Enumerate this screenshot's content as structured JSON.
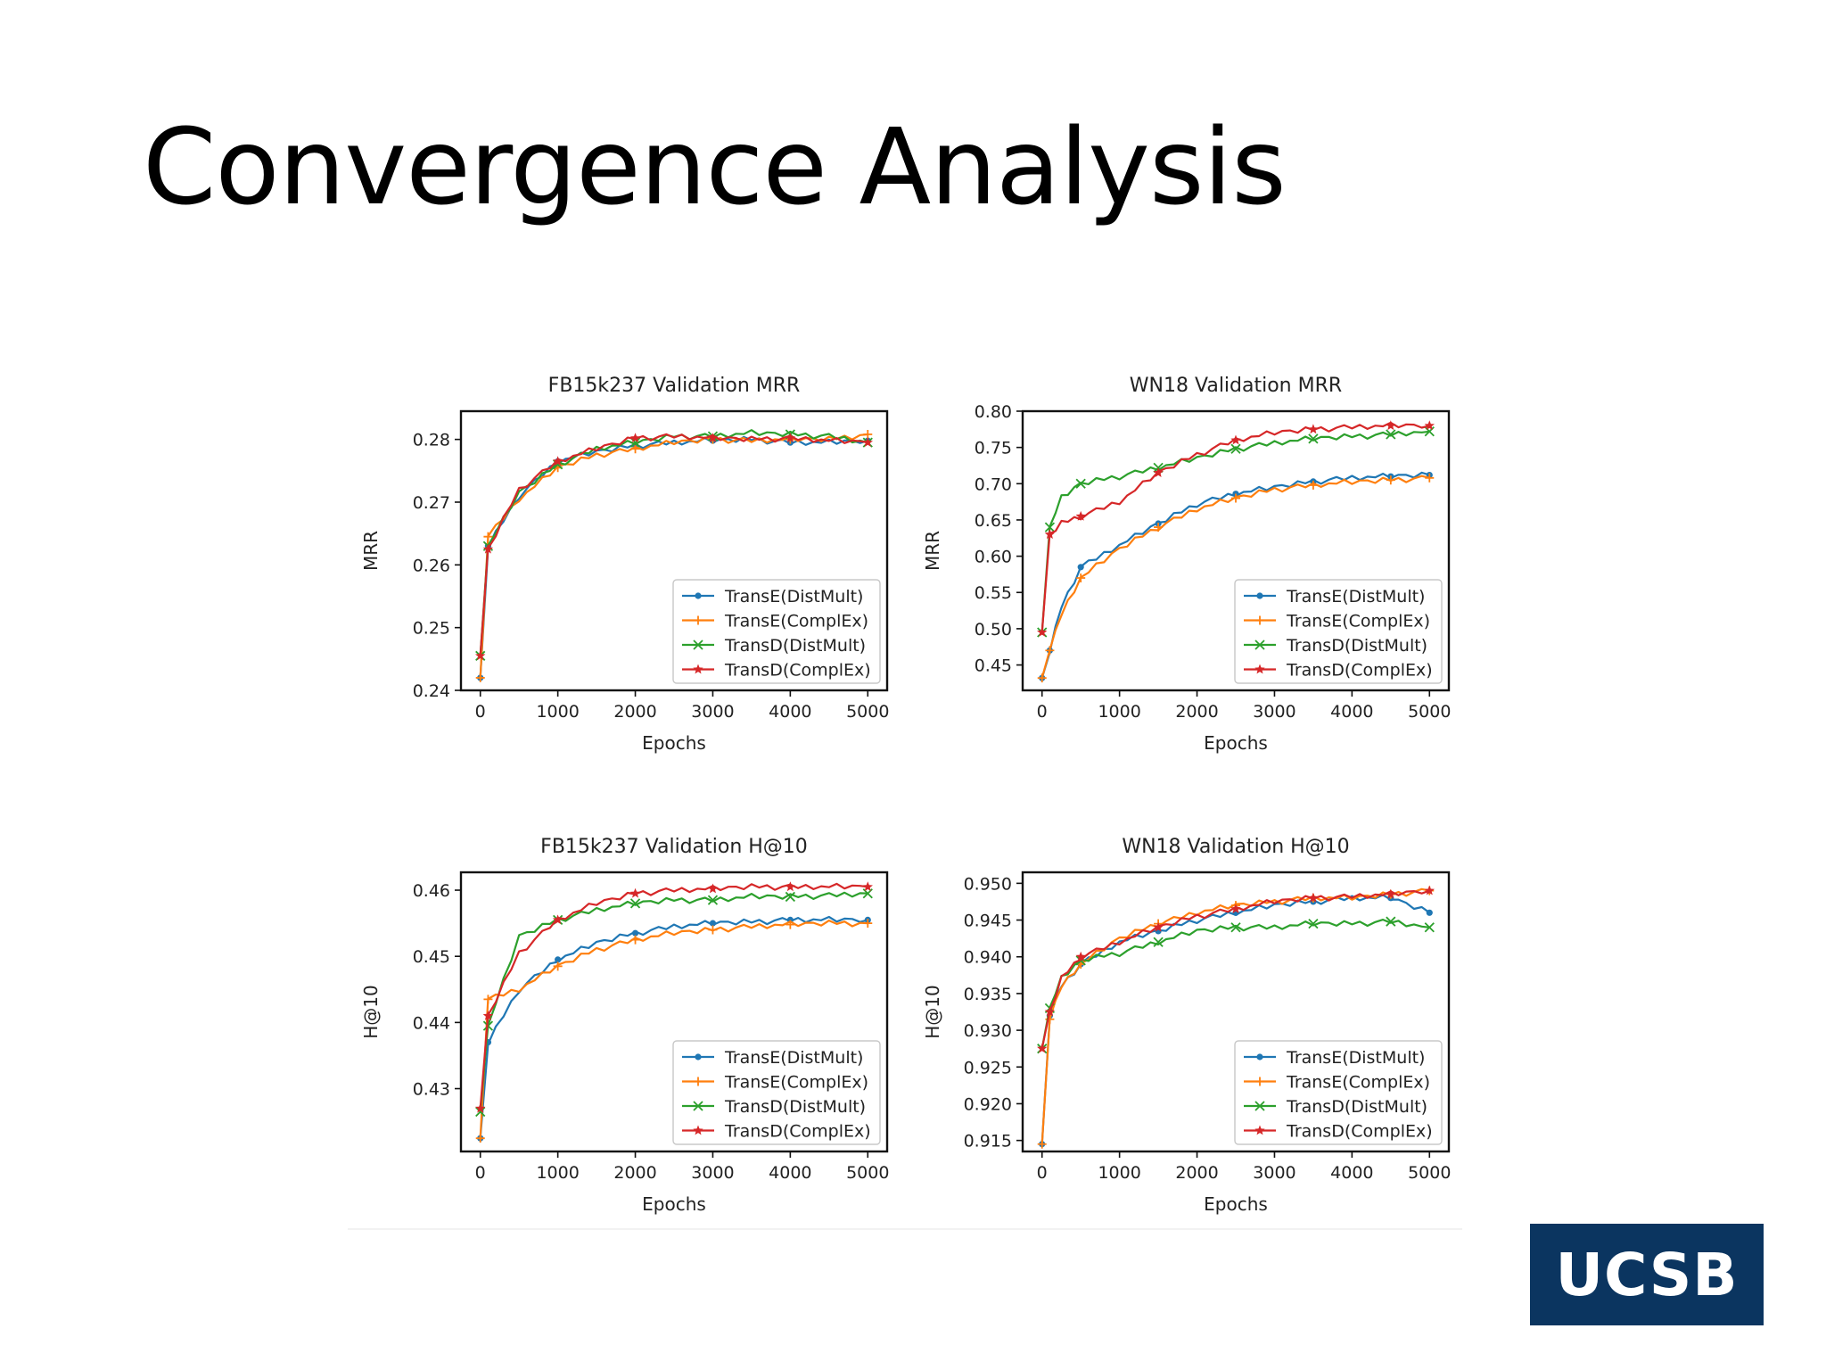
{
  "slide": {
    "title": "Convergence Analysis"
  },
  "logo": {
    "text": "UCSB",
    "color": "#0b3560"
  },
  "colors": {
    "TransE(DistMult)": "#1f77b4",
    "TransE(ComplEx)": "#ff7f0e",
    "TransD(DistMult)": "#2ca02c",
    "TransD(ComplEx)": "#d62728"
  },
  "chart_data": [
    {
      "type": "line",
      "title": "FB15k237 Validation MRR",
      "xlabel": "Epochs",
      "ylabel": "MRR",
      "xlim": [
        -250,
        5250
      ],
      "ylim": [
        0.24,
        0.2845
      ],
      "xticks": [
        0,
        1000,
        2000,
        3000,
        4000,
        5000
      ],
      "yticks": [
        0.24,
        0.25,
        0.26,
        0.27,
        0.28
      ],
      "ytick_labels": [
        "0.24",
        "0.25",
        "0.26",
        "0.27",
        "0.28"
      ],
      "legend": "lower-right",
      "grid": false,
      "x": [
        0,
        100,
        500,
        1000,
        1500,
        2000,
        2500,
        3000,
        3500,
        4000,
        4500,
        5000
      ],
      "series": [
        {
          "name": "TransE(DistMult)",
          "marker": "dot",
          "values": [
            0.242,
            0.263,
            0.271,
            0.2765,
            0.278,
            0.279,
            0.2795,
            0.2798,
            0.28,
            0.2795,
            0.2795,
            0.2798
          ]
        },
        {
          "name": "TransE(ComplEx)",
          "marker": "plus",
          "values": [
            0.242,
            0.2645,
            0.2705,
            0.2755,
            0.2775,
            0.2785,
            0.2795,
            0.28,
            0.2798,
            0.28,
            0.28,
            0.2808
          ]
        },
        {
          "name": "TransD(DistMult)",
          "marker": "x",
          "values": [
            0.2455,
            0.263,
            0.2715,
            0.276,
            0.2785,
            0.2795,
            0.2805,
            0.2805,
            0.281,
            0.2808,
            0.2805,
            0.2795
          ]
        },
        {
          "name": "TransD(ComplEx)",
          "marker": "star",
          "values": [
            0.2455,
            0.2625,
            0.272,
            0.2765,
            0.2785,
            0.2802,
            0.2805,
            0.2802,
            0.28,
            0.2802,
            0.2798,
            0.2795
          ]
        }
      ]
    },
    {
      "type": "line",
      "title": "WN18 Validation MRR",
      "xlabel": "Epochs",
      "ylabel": "MRR",
      "xlim": [
        -250,
        5250
      ],
      "ylim": [
        0.415,
        0.8
      ],
      "xticks": [
        0,
        1000,
        2000,
        3000,
        4000,
        5000
      ],
      "yticks": [
        0.45,
        0.5,
        0.55,
        0.6,
        0.65,
        0.7,
        0.75,
        0.8
      ],
      "ytick_labels": [
        "0.45",
        "0.50",
        "0.55",
        "0.60",
        "0.65",
        "0.70",
        "0.75",
        "0.80"
      ],
      "legend": "lower-right",
      "grid": false,
      "x": [
        0,
        100,
        250,
        500,
        1000,
        1500,
        2000,
        2500,
        3000,
        3500,
        4000,
        4500,
        5000
      ],
      "series": [
        {
          "name": "TransE(DistMult)",
          "marker": "dot",
          "values": [
            0.432,
            0.47,
            0.53,
            0.585,
            0.615,
            0.645,
            0.672,
            0.686,
            0.695,
            0.703,
            0.708,
            0.71,
            0.712
          ]
        },
        {
          "name": "TransE(ComplEx)",
          "marker": "plus",
          "values": [
            0.432,
            0.47,
            0.52,
            0.57,
            0.61,
            0.64,
            0.665,
            0.68,
            0.692,
            0.698,
            0.702,
            0.705,
            0.708
          ]
        },
        {
          "name": "TransD(DistMult)",
          "marker": "x",
          "values": [
            0.495,
            0.64,
            0.68,
            0.7,
            0.71,
            0.722,
            0.735,
            0.748,
            0.756,
            0.762,
            0.765,
            0.768,
            0.772
          ]
        },
        {
          "name": "TransD(ComplEx)",
          "marker": "star",
          "values": [
            0.495,
            0.63,
            0.645,
            0.655,
            0.675,
            0.715,
            0.74,
            0.76,
            0.77,
            0.775,
            0.778,
            0.78,
            0.78
          ]
        }
      ]
    },
    {
      "type": "line",
      "title": "FB15k237 Validation H@10",
      "xlabel": "Epochs",
      "ylabel": "H@10",
      "xlim": [
        -250,
        5250
      ],
      "ylim": [
        0.4205,
        0.4627
      ],
      "xticks": [
        0,
        1000,
        2000,
        3000,
        4000,
        5000
      ],
      "yticks": [
        0.43,
        0.44,
        0.45,
        0.46
      ],
      "ytick_labels": [
        "0.43",
        "0.44",
        "0.45",
        "0.46"
      ],
      "legend": "lower-right",
      "grid": false,
      "x": [
        0,
        100,
        500,
        1000,
        1500,
        2000,
        2500,
        3000,
        3500,
        4000,
        4500,
        5000
      ],
      "series": [
        {
          "name": "TransE(DistMult)",
          "marker": "dot",
          "values": [
            0.4225,
            0.437,
            0.445,
            0.4495,
            0.452,
            0.4535,
            0.4545,
            0.455,
            0.4552,
            0.4555,
            0.4555,
            0.4555
          ]
        },
        {
          "name": "TransE(ComplEx)",
          "marker": "plus",
          "values": [
            0.4225,
            0.4435,
            0.445,
            0.4485,
            0.451,
            0.4525,
            0.4535,
            0.454,
            0.4545,
            0.4548,
            0.455,
            0.455
          ]
        },
        {
          "name": "TransD(DistMult)",
          "marker": "x",
          "values": [
            0.4265,
            0.4395,
            0.453,
            0.4555,
            0.457,
            0.458,
            0.4585,
            0.4585,
            0.459,
            0.459,
            0.4592,
            0.4595
          ]
        },
        {
          "name": "TransD(ComplEx)",
          "marker": "star",
          "values": [
            0.427,
            0.441,
            0.4505,
            0.4555,
            0.458,
            0.4595,
            0.46,
            0.4602,
            0.4605,
            0.4605,
            0.4605,
            0.4605
          ]
        }
      ]
    },
    {
      "type": "line",
      "title": "WN18 Validation H@10",
      "xlabel": "Epochs",
      "ylabel": "H@10",
      "xlim": [
        -250,
        5250
      ],
      "ylim": [
        0.9135,
        0.9515
      ],
      "xticks": [
        0,
        1000,
        2000,
        3000,
        4000,
        5000
      ],
      "yticks": [
        0.915,
        0.92,
        0.925,
        0.93,
        0.935,
        0.94,
        0.945,
        0.95
      ],
      "ytick_labels": [
        "0.915",
        "0.920",
        "0.925",
        "0.930",
        "0.935",
        "0.940",
        "0.945",
        "0.950"
      ],
      "legend": "lower-right",
      "grid": false,
      "x": [
        0,
        100,
        250,
        500,
        1000,
        1500,
        2000,
        2500,
        3000,
        3500,
        4000,
        4500,
        5000
      ],
      "series": [
        {
          "name": "TransE(DistMult)",
          "marker": "dot",
          "values": [
            0.9145,
            0.932,
            0.936,
            0.939,
            0.942,
            0.9435,
            0.945,
            0.946,
            0.947,
            0.9475,
            0.948,
            0.948,
            0.946
          ]
        },
        {
          "name": "TransE(ComplEx)",
          "marker": "plus",
          "values": [
            0.9145,
            0.9315,
            0.936,
            0.939,
            0.9425,
            0.9445,
            0.946,
            0.947,
            0.9475,
            0.948,
            0.948,
            0.9485,
            0.949
          ]
        },
        {
          "name": "TransD(DistMult)",
          "marker": "x",
          "values": [
            0.9275,
            0.933,
            0.937,
            0.9395,
            0.9405,
            0.942,
            0.9435,
            0.944,
            0.944,
            0.9445,
            0.9445,
            0.9448,
            0.944
          ]
        },
        {
          "name": "TransD(ComplEx)",
          "marker": "star",
          "values": [
            0.9275,
            0.9325,
            0.937,
            0.94,
            0.942,
            0.944,
            0.9455,
            0.9465,
            0.9475,
            0.948,
            0.9482,
            0.9485,
            0.949
          ]
        }
      ]
    }
  ]
}
